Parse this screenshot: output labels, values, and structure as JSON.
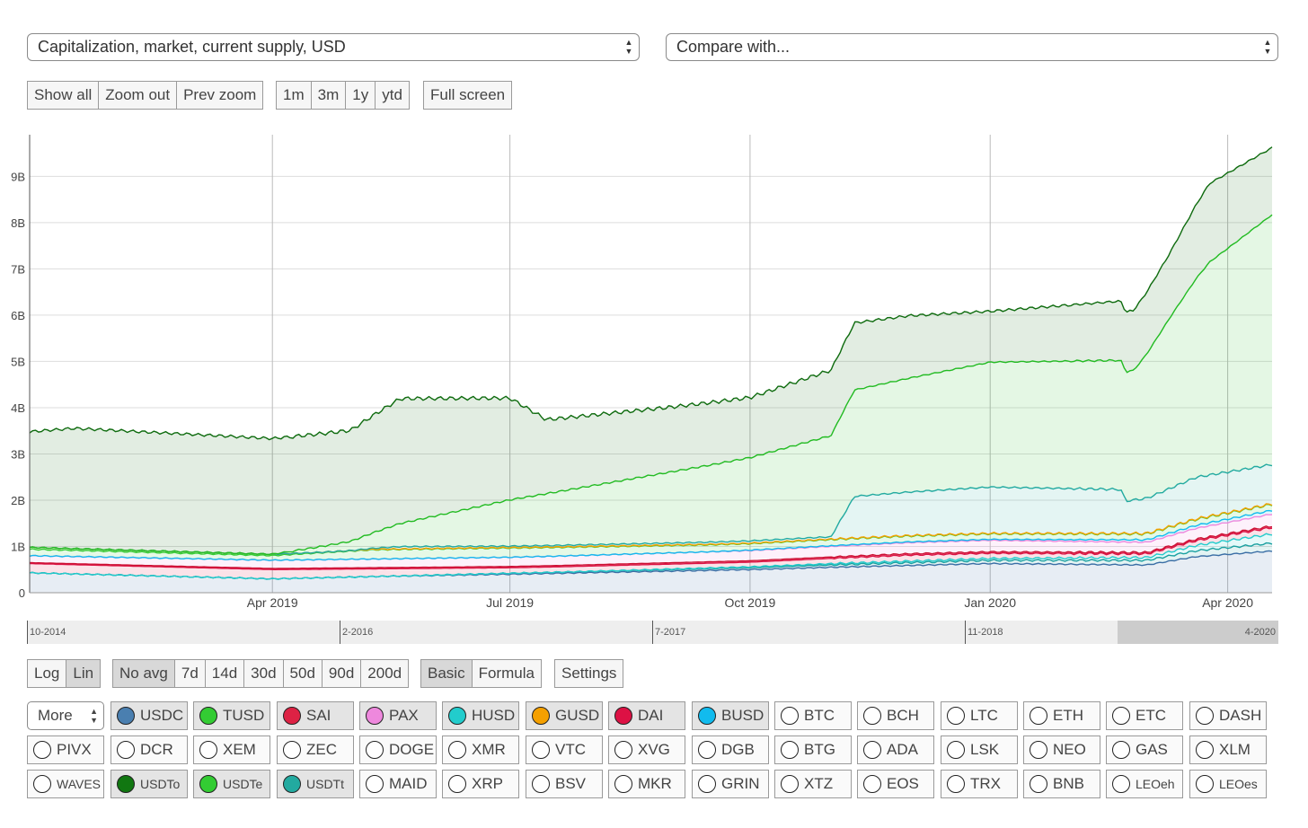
{
  "metric_select": {
    "value": "Capitalization, market, current supply, USD"
  },
  "compare_select": {
    "value": "Compare with..."
  },
  "zoom_buttons": [
    "Show all",
    "Zoom out",
    "Prev zoom"
  ],
  "range_buttons": [
    "1m",
    "3m",
    "1y",
    "ytd"
  ],
  "fullscreen_label": "Full screen",
  "scale_buttons": [
    {
      "label": "Log",
      "active": false
    },
    {
      "label": "Lin",
      "active": true
    }
  ],
  "avg_buttons": [
    {
      "label": "No avg",
      "active": true
    },
    {
      "label": "7d"
    },
    {
      "label": "14d"
    },
    {
      "label": "30d"
    },
    {
      "label": "50d"
    },
    {
      "label": "90d"
    },
    {
      "label": "200d"
    }
  ],
  "mode_buttons": [
    {
      "label": "Basic",
      "active": true
    },
    {
      "label": "Formula"
    }
  ],
  "settings_label": "Settings",
  "more_select": {
    "value": "More"
  },
  "navigator": {
    "labels": [
      "10-2014",
      "2-2016",
      "7-2017",
      "11-2018",
      "4-2020"
    ]
  },
  "colors": {
    "grid": "#dddddd",
    "axis_text": "#444444"
  },
  "coins": [
    {
      "label": "USDC",
      "color": "#4a7fb0",
      "on": true
    },
    {
      "label": "TUSD",
      "color": "#33cc33",
      "on": true
    },
    {
      "label": "SAI",
      "color": "#dd2244",
      "on": true
    },
    {
      "label": "PAX",
      "color": "#ee88dd",
      "on": true
    },
    {
      "label": "HUSD",
      "color": "#22cccc",
      "on": true
    },
    {
      "label": "GUSD",
      "color": "#f5a000",
      "on": true
    },
    {
      "label": "DAI",
      "color": "#dd1144",
      "on": true
    },
    {
      "label": "BUSD",
      "color": "#11bbee",
      "on": true
    },
    {
      "label": "BTC"
    },
    {
      "label": "BCH"
    },
    {
      "label": "LTC"
    },
    {
      "label": "ETH"
    },
    {
      "label": "ETC"
    },
    {
      "label": "DASH"
    },
    {
      "label": "PIVX"
    },
    {
      "label": "DCR"
    },
    {
      "label": "XEM"
    },
    {
      "label": "ZEC"
    },
    {
      "label": "DOGE"
    },
    {
      "label": "XMR"
    },
    {
      "label": "VTC"
    },
    {
      "label": "XVG"
    },
    {
      "label": "DGB"
    },
    {
      "label": "BTG"
    },
    {
      "label": "ADA"
    },
    {
      "label": "LSK"
    },
    {
      "label": "NEO"
    },
    {
      "label": "GAS"
    },
    {
      "label": "XLM"
    },
    {
      "label": "WAVES",
      "small": true
    },
    {
      "label": "USDTo",
      "color": "#117711",
      "on": true,
      "small": true
    },
    {
      "label": "USDTe",
      "color": "#33cc33",
      "on": true,
      "small": true
    },
    {
      "label": "USDTt",
      "color": "#22aaa0",
      "on": true,
      "small": true
    },
    {
      "label": "MAID"
    },
    {
      "label": "XRP"
    },
    {
      "label": "BSV"
    },
    {
      "label": "MKR"
    },
    {
      "label": "GRIN"
    },
    {
      "label": "XTZ"
    },
    {
      "label": "EOS"
    },
    {
      "label": "TRX"
    },
    {
      "label": "BNB"
    },
    {
      "label": "LEOeh",
      "small": true
    },
    {
      "label": "LEOes",
      "small": true
    }
  ],
  "chart_data": {
    "type": "area",
    "stacked": true,
    "x_tick_labels": [
      "Apr 2019",
      "Jul 2019",
      "Oct 2019",
      "Jan 2020",
      "Apr 2020"
    ],
    "x_tick_dates": [
      "2019-04-01",
      "2019-07-01",
      "2019-10-01",
      "2020-01-01",
      "2020-04-01"
    ],
    "y_tick_labels": [
      "0",
      "1B",
      "2B",
      "3B",
      "4B",
      "5B",
      "6B",
      "7B",
      "8B",
      "9B"
    ],
    "ylim": [
      0,
      9.9
    ],
    "y_unit": "billion USD",
    "x_range": [
      "2018-12-29",
      "2020-04-18"
    ],
    "grid": true,
    "series": [
      {
        "name": "USDC",
        "color": "#3a6ea5",
        "x": [
          "2018-12-29",
          "2019-04-01",
          "2019-05-10",
          "2019-07-01",
          "2019-10-01",
          "2019-11-01",
          "2020-01-01",
          "2020-03-01",
          "2020-03-20",
          "2020-04-18"
        ],
        "y": [
          0.43,
          0.3,
          0.35,
          0.4,
          0.5,
          0.55,
          0.63,
          0.6,
          0.78,
          0.9
        ]
      },
      {
        "name": "USDT (Tron)",
        "color": "#1aa0a0",
        "x": [
          "2018-12-29",
          "2019-05-10",
          "2019-07-01",
          "2019-10-01",
          "2020-01-01",
          "2020-03-01",
          "2020-04-18"
        ],
        "y": [
          0,
          0,
          0.02,
          0.04,
          0.07,
          0.1,
          0.17
        ]
      },
      {
        "name": "HUSD",
        "color": "#22cccc",
        "x": [
          "2018-12-29",
          "2019-07-20",
          "2019-10-01",
          "2020-01-01",
          "2020-03-01",
          "2020-04-18"
        ],
        "y": [
          0,
          0,
          0.02,
          0.04,
          0.06,
          0.2
        ]
      },
      {
        "name": "DAI",
        "color": "#dd1144",
        "x": [
          "2018-12-29",
          "2019-04-01",
          "2019-07-01",
          "2019-10-01",
          "2019-12-01",
          "2020-03-01",
          "2020-04-18"
        ],
        "y": [
          0.2,
          0.2,
          0.12,
          0.1,
          0.13,
          0.08,
          0.14
        ]
      },
      {
        "name": "SAI",
        "color": "#cc1133",
        "x": [
          "2018-12-29",
          "2019-10-01",
          "2019-12-01",
          "2020-04-18"
        ],
        "y": [
          0.02,
          0.03,
          0.03,
          0.03
        ]
      },
      {
        "name": "PAX",
        "color": "#ee88dd",
        "x": [
          "2018-12-29",
          "2019-04-01",
          "2019-07-01",
          "2019-10-01",
          "2020-01-01",
          "2020-03-01",
          "2020-04-18"
        ],
        "y": [
          0.15,
          0.18,
          0.2,
          0.22,
          0.25,
          0.22,
          0.26
        ]
      },
      {
        "name": "BUSD",
        "color": "#11bbee",
        "x": [
          "2018-12-29",
          "2019-09-15",
          "2019-10-01",
          "2020-01-01",
          "2020-04-18"
        ],
        "y": [
          0,
          0,
          0.01,
          0.02,
          0.08
        ]
      },
      {
        "name": "TUSD",
        "color": "#33cc33",
        "x": [
          "2018-12-29",
          "2019-04-01",
          "2019-05-10",
          "2019-07-01",
          "2019-10-01",
          "2020-01-01",
          "2020-03-15",
          "2020-04-18"
        ],
        "y": [
          0.14,
          0.1,
          0.2,
          0.2,
          0.14,
          0.12,
          0.13,
          0.13
        ]
      },
      {
        "name": "GUSD",
        "color": "#f5a000",
        "x": [
          "2018-12-29",
          "2019-04-01",
          "2019-04-20",
          "2020-04-18"
        ],
        "y": [
          0.04,
          0.03,
          0.01,
          0.01
        ]
      },
      {
        "name": "USDTt",
        "color": "#22aaa0",
        "x": [
          "2018-12-29",
          "2019-05-01",
          "2019-05-20",
          "2019-07-01",
          "2019-10-01",
          "2019-11-01",
          "2019-11-10",
          "2020-01-01",
          "2020-02-20",
          "2020-02-22",
          "2020-03-20",
          "2020-04-18"
        ],
        "y": [
          0.0,
          0.0,
          0.05,
          0.03,
          0.05,
          0.05,
          0.9,
          1.0,
          0.95,
          0.7,
          0.9,
          0.85
        ]
      },
      {
        "name": "USDTe",
        "color": "#22bb22",
        "x": [
          "2018-12-29",
          "2019-04-01",
          "2019-05-01",
          "2019-05-20",
          "2019-07-01",
          "2019-10-01",
          "2019-11-10",
          "2020-01-01",
          "2020-02-25",
          "2020-03-10",
          "2020-03-25",
          "2020-04-18"
        ],
        "y": [
          0.0,
          0.0,
          0.2,
          0.5,
          1.0,
          1.8,
          2.3,
          2.7,
          2.8,
          3.7,
          4.6,
          5.4
        ]
      },
      {
        "name": "USDTo",
        "color": "#0e6b0e",
        "x": [
          "2018-12-29",
          "2019-01-15",
          "2019-04-01",
          "2019-05-01",
          "2019-05-20",
          "2019-07-01",
          "2019-07-15",
          "2019-09-01",
          "2019-10-01",
          "2019-11-10",
          "2019-12-01",
          "2020-01-01",
          "2020-02-25",
          "2020-03-10",
          "2020-03-25",
          "2020-04-18"
        ],
        "y": [
          2.5,
          2.6,
          2.5,
          2.4,
          2.7,
          2.2,
          1.6,
          1.4,
          1.3,
          1.45,
          1.35,
          1.1,
          1.3,
          1.4,
          1.7,
          1.45
        ]
      }
    ]
  }
}
